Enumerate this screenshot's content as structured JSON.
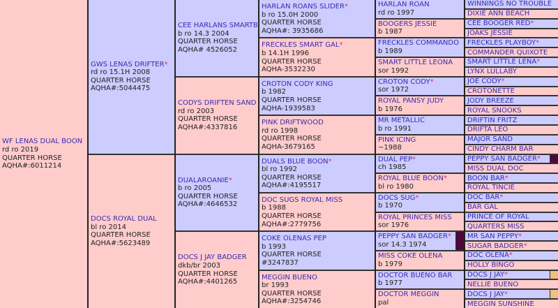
{
  "colors": {
    "sire": "#ccccff",
    "dam": "#ffcccc",
    "name": "#3a2bb0",
    "star": "#e03060"
  },
  "columns": [
    [
      {
        "name": "WF LENAS DUAL BOON",
        "star": false,
        "lines": [
          "rd ro 2019",
          "QUARTER HORSE",
          "AQHA#:6011214"
        ]
      }
    ],
    [
      {
        "name": "GWS LENAS DRIFTER",
        "star": true,
        "lines": [
          "rd ro 15.1H 2008",
          "QUARTER HORSE",
          "AQHA#:5044475"
        ]
      },
      {
        "name": "DOCS ROYAL DUAL",
        "star": false,
        "lines": [
          "bl ro 2014",
          "QUARTER HORSE",
          "AQHA#:5623489"
        ]
      }
    ],
    [
      {
        "name": "CEE HARLANS SMARTBOY",
        "star": true,
        "lines": [
          "b ro 14.3 2004",
          "QUARTER HORSE",
          "AQHA# 4526052"
        ]
      },
      {
        "name": "CODYS DRIFTEN SAND",
        "star": false,
        "lines": [
          "rd ro 2003",
          "QUARTER HORSE",
          "AQHA#:4337816"
        ]
      },
      {
        "name": "DUALAROANIE",
        "star": true,
        "lines": [
          "b ro 2005",
          "QUARTER HORSE",
          "AQHA#:4646532"
        ]
      },
      {
        "name": "DOCS J JAY BADGER",
        "star": false,
        "lines": [
          "dkb/br 2003",
          "QUARTER HORSE",
          "AQHA#:4401265"
        ]
      }
    ],
    [
      {
        "name": "HARLAN ROANS SLIDER",
        "star": true,
        "lines": [
          "b ro 15.0H 2000",
          "QUARTER HORSE",
          "AQHA#: 3935686"
        ]
      },
      {
        "name": "FRECKLES SMART GAL",
        "star": true,
        "lines": [
          "b 14.1H 1996",
          "QUARTER HORSE",
          "AQHA-3532230"
        ]
      },
      {
        "name": "CROTON CODY KING",
        "star": false,
        "lines": [
          "b 1982",
          "QUARTER HORSE",
          "AQHA-1939583"
        ]
      },
      {
        "name": "PINK DRIFTWOOD",
        "star": false,
        "lines": [
          "rd ro 1998",
          "QUARTER HORSE",
          "AQHA-3679165"
        ]
      },
      {
        "name": "DUALS BLUE BOON",
        "star": true,
        "lines": [
          "bl ro 1992",
          "QUARTER HORSE",
          "AQHA#:4195517"
        ]
      },
      {
        "name": "DOC SUGS ROYAL MISS",
        "star": false,
        "lines": [
          "b 1988",
          "QUARTER HORSE",
          "AQHA#:2779756"
        ]
      },
      {
        "name": "COKE OLENAS PEP",
        "star": false,
        "lines": [
          "b 1993",
          "QUARTER HORSE",
          "#3247837"
        ]
      },
      {
        "name": "MEGGIN BUENO",
        "star": false,
        "lines": [
          "br 1993",
          "QUARTER HORSE",
          "AQHA#:3254746"
        ]
      }
    ],
    [
      {
        "name": "HARLAN ROAN",
        "star": false,
        "lines": [
          "rd ro 1997"
        ]
      },
      {
        "name": "BOOGERS JESSIE",
        "star": false,
        "lines": [
          "b 1987"
        ]
      },
      {
        "name": "FRECKLES COMMANDO",
        "star": false,
        "lines": [
          "b 1989"
        ]
      },
      {
        "name": "SMART LITTLE LEONA",
        "star": false,
        "lines": [
          "sor 1992"
        ]
      },
      {
        "name": "CROTON CODY",
        "star": true,
        "lines": [
          "sor 1972"
        ]
      },
      {
        "name": "ROYAL PANSY JUDY",
        "star": false,
        "lines": [
          "b 1976"
        ]
      },
      {
        "name": "MR METALLIC",
        "star": false,
        "lines": [
          "b ro 1991"
        ]
      },
      {
        "name": "PINK ICING",
        "star": false,
        "lines": [
          "~1988"
        ]
      },
      {
        "name": "DUAL PEP",
        "star": true,
        "lines": [
          "ch 1985"
        ]
      },
      {
        "name": "ROYAL BLUE BOON",
        "star": true,
        "lines": [
          "bl ro 1980"
        ]
      },
      {
        "name": "DOCS SUG",
        "star": true,
        "lines": [
          "b 1970"
        ]
      },
      {
        "name": "ROYAL PRINCES MISS",
        "star": false,
        "lines": [
          "sor 1976"
        ]
      },
      {
        "name": "PEPPY SAN BADGER",
        "star": true,
        "lines": [
          "sor 14.3 1974"
        ],
        "mark": "#4a0a3a"
      },
      {
        "name": "MISS COKE OLENA",
        "star": false,
        "lines": [
          "b 1979"
        ]
      },
      {
        "name": "DOCTOR BUENO BAR",
        "star": false,
        "lines": [
          "b 1977"
        ]
      },
      {
        "name": "DOCTOR MEGGIN",
        "star": false,
        "lines": [
          "pal"
        ]
      }
    ],
    [
      {
        "name": "WINNINGS NO TROUBLE",
        "star": false
      },
      {
        "name": "DIXIE ANN BEACH",
        "star": false
      },
      {
        "name": "CEE BOOGER RED",
        "star": true
      },
      {
        "name": "JOAKS JESSIE",
        "star": false
      },
      {
        "name": "FRECKLES PLAYBOY",
        "star": true
      },
      {
        "name": "COMMANDER QUIXOTE",
        "star": false
      },
      {
        "name": "SMART LITTLE LENA",
        "star": true
      },
      {
        "name": "LYNX LULLABY",
        "star": false
      },
      {
        "name": "JOE CODY",
        "star": true
      },
      {
        "name": "CROTONETTE",
        "star": false
      },
      {
        "name": "JODY BREEZE",
        "star": false
      },
      {
        "name": "ROYAL SNOOKS",
        "star": false
      },
      {
        "name": "DRIFTIN FRITZ",
        "star": false
      },
      {
        "name": "DRIFTA LEO",
        "star": false
      },
      {
        "name": "MAJOR SAND",
        "star": false
      },
      {
        "name": "CINDY CHARM BAR",
        "star": false
      },
      {
        "name": "PEPPY SAN BADGER",
        "star": true,
        "mark": "#4a0a3a"
      },
      {
        "name": "MISS DUAL DOC",
        "star": false
      },
      {
        "name": "BOON BAR",
        "star": true
      },
      {
        "name": "ROYAL TINCIE",
        "star": false
      },
      {
        "name": "DOC BAR",
        "star": true
      },
      {
        "name": "BAR GAL",
        "star": false
      },
      {
        "name": "PRINCE OF ROYAL",
        "star": false
      },
      {
        "name": "QUARTERS MISS",
        "star": false
      },
      {
        "name": "MR SAN PEPPY",
        "star": true
      },
      {
        "name": "SUGAR BADGER",
        "star": true
      },
      {
        "name": "DOC OLENA",
        "star": true
      },
      {
        "name": "HOLLY BINGO",
        "star": false
      },
      {
        "name": "DOCS J JAY",
        "star": true,
        "mark": "#f0c080"
      },
      {
        "name": "NELLIE BUENO",
        "star": false
      },
      {
        "name": "DOCS J JAY",
        "star": true,
        "mark": "#f0c080"
      },
      {
        "name": "MEGGIN SUNSHINE",
        "star": false
      }
    ]
  ],
  "star_symbol": "*"
}
